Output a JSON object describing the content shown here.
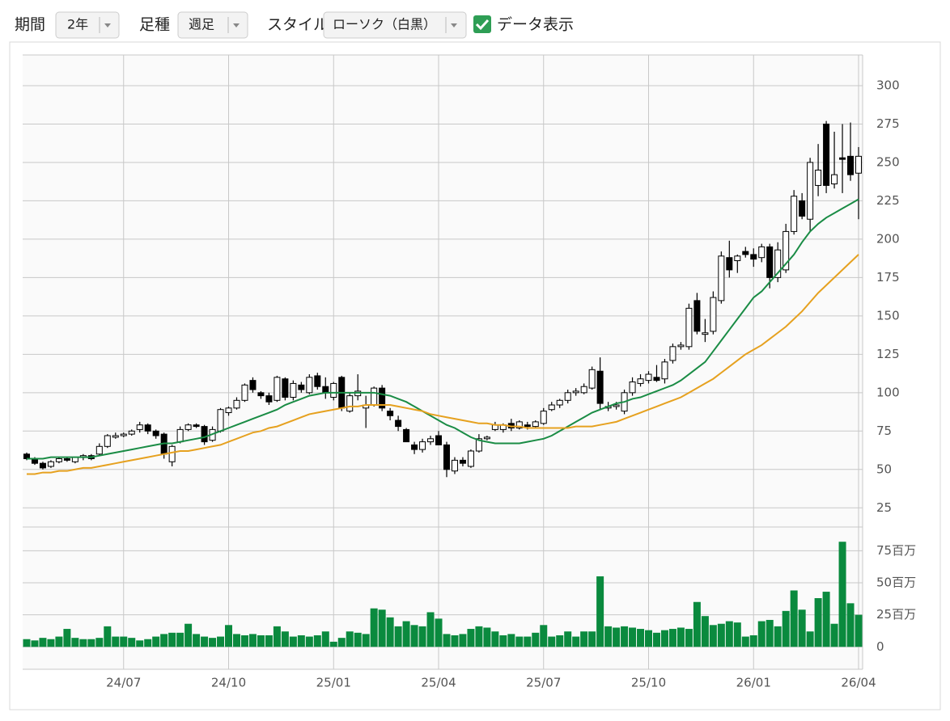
{
  "controls": {
    "period_label": "期間",
    "period": "2年",
    "bar_type_label": "足種",
    "bar_type": "週足",
    "style_label": "スタイル",
    "style": "ローソク（白黒）",
    "show_data": "データ表示"
  },
  "chart_data": [
    {
      "type": "candlestick",
      "categories": [
        null,
        null,
        null,
        null,
        null,
        null,
        null,
        null,
        null,
        null,
        null,
        null,
        "24/07",
        null,
        null,
        null,
        null,
        null,
        null,
        null,
        null,
        null,
        null,
        null,
        null,
        "24/10",
        null,
        null,
        null,
        null,
        null,
        null,
        null,
        null,
        null,
        null,
        null,
        null,
        "25/01",
        null,
        null,
        null,
        null,
        null,
        null,
        null,
        null,
        null,
        null,
        null,
        null,
        "25/04",
        null,
        null,
        null,
        null,
        null,
        null,
        null,
        null,
        null,
        null,
        null,
        null,
        "25/07",
        null,
        null,
        null,
        null,
        null,
        null,
        null,
        null,
        null,
        null,
        null,
        null,
        "25/10",
        null,
        null,
        null,
        null,
        null,
        null,
        null,
        null,
        null,
        null,
        null,
        null,
        "26/01",
        null,
        null,
        null,
        null,
        null,
        null,
        null,
        null,
        null,
        null,
        null,
        null,
        "26/04"
      ],
      "ohlc": [
        [
          60,
          61,
          56,
          57
        ],
        [
          57,
          58,
          53,
          54
        ],
        [
          54,
          55,
          50,
          51
        ],
        [
          52,
          56,
          51,
          55
        ],
        [
          55,
          58,
          54,
          57
        ],
        [
          57,
          58,
          55,
          56
        ],
        [
          55,
          58,
          54,
          58
        ],
        [
          58,
          60,
          56,
          59
        ],
        [
          59,
          60,
          56,
          57
        ],
        [
          60,
          67,
          59,
          65
        ],
        [
          65,
          73,
          64,
          72
        ],
        [
          71,
          74,
          70,
          72
        ],
        [
          72,
          74,
          71,
          73
        ],
        [
          73,
          76,
          72,
          75
        ],
        [
          76,
          81,
          74,
          79
        ],
        [
          79,
          80,
          73,
          75
        ],
        [
          75,
          76,
          70,
          72
        ],
        [
          73,
          74,
          57,
          60
        ],
        [
          55,
          66,
          52,
          65
        ],
        [
          68,
          78,
          67,
          76
        ],
        [
          76,
          80,
          75,
          79
        ],
        [
          79,
          80,
          77,
          78
        ],
        [
          78,
          79,
          66,
          68
        ],
        [
          69,
          78,
          68,
          76
        ],
        [
          75,
          90,
          74,
          89
        ],
        [
          87,
          91,
          85,
          90
        ],
        [
          90,
          97,
          89,
          95
        ],
        [
          95,
          106,
          94,
          105
        ],
        [
          108,
          110,
          100,
          102
        ],
        [
          100,
          101,
          96,
          98
        ],
        [
          98,
          100,
          92,
          94
        ],
        [
          95,
          111,
          94,
          110
        ],
        [
          109,
          110,
          95,
          97
        ],
        [
          97,
          108,
          95,
          106
        ],
        [
          105,
          107,
          100,
          102
        ],
        [
          100,
          112,
          99,
          110
        ],
        [
          111,
          113,
          102,
          104
        ],
        [
          104,
          110,
          96,
          100
        ],
        [
          97,
          107,
          95,
          106
        ],
        [
          110,
          111,
          88,
          90
        ],
        [
          88,
          100,
          87,
          98
        ],
        [
          98,
          112,
          95,
          101
        ],
        [
          90,
          98,
          77,
          92
        ],
        [
          92,
          104,
          91,
          103
        ],
        [
          103,
          105,
          88,
          90
        ],
        [
          88,
          90,
          82,
          85
        ],
        [
          82,
          85,
          75,
          78
        ],
        [
          76,
          77,
          68,
          68
        ],
        [
          66,
          68,
          60,
          63
        ],
        [
          63,
          70,
          61,
          68
        ],
        [
          68,
          72,
          66,
          70
        ],
        [
          72,
          75,
          66,
          66
        ],
        [
          66,
          68,
          45,
          50
        ],
        [
          49,
          58,
          47,
          56
        ],
        [
          56,
          58,
          52,
          54
        ],
        [
          52,
          63,
          51,
          62
        ],
        [
          62,
          73,
          61,
          70
        ],
        [
          70,
          72,
          69,
          71
        ],
        [
          76,
          81,
          75,
          79
        ],
        [
          76,
          80,
          74,
          79
        ],
        [
          80,
          83,
          75,
          77
        ],
        [
          77,
          82,
          76,
          81
        ],
        [
          79,
          81,
          76,
          78
        ],
        [
          78,
          82,
          77,
          81
        ],
        [
          80,
          90,
          79,
          88
        ],
        [
          89,
          94,
          88,
          92
        ],
        [
          92,
          96,
          90,
          95
        ],
        [
          95,
          102,
          93,
          100
        ],
        [
          100,
          103,
          98,
          101
        ],
        [
          100,
          106,
          99,
          104
        ],
        [
          103,
          117,
          102,
          115
        ],
        [
          114,
          123,
          89,
          93
        ],
        [
          90,
          94,
          88,
          91
        ],
        [
          91,
          94,
          89,
          92
        ],
        [
          88,
          102,
          86,
          100
        ],
        [
          100,
          110,
          98,
          107
        ],
        [
          106,
          112,
          104,
          109
        ],
        [
          108,
          114,
          106,
          112
        ],
        [
          110,
          118,
          107,
          108
        ],
        [
          109,
          122,
          106,
          120
        ],
        [
          121,
          132,
          119,
          130
        ],
        [
          130,
          133,
          128,
          131
        ],
        [
          130,
          158,
          128,
          155
        ],
        [
          160,
          165,
          138,
          140
        ],
        [
          138,
          148,
          133,
          139
        ],
        [
          140,
          166,
          138,
          162
        ],
        [
          160,
          192,
          158,
          189
        ],
        [
          188,
          199,
          175,
          180
        ],
        [
          186,
          190,
          178,
          189
        ],
        [
          192,
          195,
          188,
          190
        ],
        [
          190,
          194,
          182,
          187
        ],
        [
          188,
          197,
          185,
          195
        ],
        [
          195,
          197,
          168,
          175
        ],
        [
          175,
          198,
          172,
          193
        ],
        [
          180,
          210,
          178,
          205
        ],
        [
          205,
          232,
          203,
          228
        ],
        [
          225,
          230,
          213,
          215
        ],
        [
          213,
          253,
          205,
          250
        ],
        [
          235,
          262,
          228,
          245
        ],
        [
          275,
          277,
          230,
          235
        ],
        [
          236,
          270,
          233,
          242
        ],
        [
          253,
          275,
          230,
          252
        ],
        [
          254,
          276,
          238,
          242
        ],
        [
          243,
          260,
          213,
          254
        ]
      ],
      "up_color": "#ffffff",
      "down_color": "#000000",
      "lines": [
        {
          "color": "#1a8c45",
          "values": [
            57,
            57,
            57,
            58,
            58,
            58,
            58,
            58,
            58,
            59,
            60,
            61,
            62,
            63,
            64,
            65,
            66,
            67,
            67,
            68,
            69,
            70,
            71,
            73,
            75,
            77,
            79,
            81,
            83,
            85,
            87,
            89,
            92,
            94,
            96,
            98,
            99,
            100,
            100,
            100,
            100,
            100,
            100,
            100,
            99,
            98,
            96,
            94,
            91,
            88,
            85,
            82,
            79,
            77,
            74,
            71,
            69,
            68,
            67,
            67,
            67,
            67,
            68,
            69,
            70,
            72,
            75,
            78,
            81,
            84,
            87,
            89,
            91,
            93,
            94,
            96,
            97,
            99,
            101,
            103,
            105,
            108,
            112,
            116,
            120,
            127,
            134,
            141,
            148,
            155,
            162,
            166,
            172,
            178,
            184,
            190,
            198,
            205,
            210,
            214,
            217,
            220,
            223,
            226
          ]
        },
        {
          "color": "#e6a11f",
          "values": [
            47,
            47,
            48,
            48,
            49,
            49,
            50,
            51,
            51,
            52,
            53,
            54,
            55,
            56,
            57,
            58,
            59,
            60,
            61,
            62,
            62,
            63,
            64,
            65,
            66,
            68,
            70,
            72,
            74,
            75,
            77,
            78,
            80,
            82,
            84,
            86,
            87,
            88,
            89,
            90,
            91,
            91,
            92,
            92,
            92,
            92,
            91,
            90,
            89,
            88,
            86,
            85,
            84,
            83,
            82,
            81,
            80,
            80,
            79,
            79,
            78,
            78,
            77,
            77,
            77,
            77,
            77,
            77,
            78,
            78,
            78,
            79,
            80,
            81,
            83,
            85,
            87,
            89,
            91,
            93,
            95,
            97,
            100,
            103,
            106,
            109,
            113,
            117,
            121,
            125,
            128,
            131,
            135,
            139,
            143,
            148,
            153,
            159,
            165,
            170,
            175,
            180,
            185,
            190
          ]
        }
      ],
      "ylim": [
        12.5,
        320
      ],
      "yticks": [
        25,
        50,
        75,
        100,
        125,
        150,
        175,
        200,
        225,
        250,
        275,
        300
      ],
      "grid": true
    },
    {
      "type": "bar",
      "color": "#0a8a3e",
      "values": [
        6,
        5,
        7,
        6,
        8,
        14,
        7,
        6,
        6,
        7,
        16,
        8,
        8,
        7,
        5,
        6,
        8,
        10,
        11,
        11,
        18,
        10,
        8,
        7,
        8,
        17,
        10,
        9,
        10,
        9,
        9,
        16,
        12,
        8,
        9,
        8,
        9,
        12,
        4,
        7,
        12,
        11,
        10,
        30,
        29,
        23,
        16,
        20,
        17,
        16,
        27,
        22,
        10,
        9,
        10,
        14,
        16,
        15,
        12,
        9,
        10,
        8,
        8,
        11,
        17,
        8,
        9,
        12,
        8,
        12,
        12,
        55,
        16,
        15,
        16,
        15,
        14,
        13,
        11,
        13,
        14,
        15,
        14,
        35,
        24,
        17,
        18,
        20,
        19,
        8,
        9,
        20,
        21,
        16,
        28,
        44,
        29,
        12,
        38,
        43,
        18,
        82,
        34,
        25
      ],
      "ylim": [
        -17.5,
        93.5
      ],
      "yticks": [
        0,
        {
          "value": 25,
          "label": "25百万"
        },
        {
          "value": 50,
          "label": "50百万"
        },
        {
          "value": 75,
          "label": "75百万"
        }
      ],
      "grid": true
    }
  ]
}
